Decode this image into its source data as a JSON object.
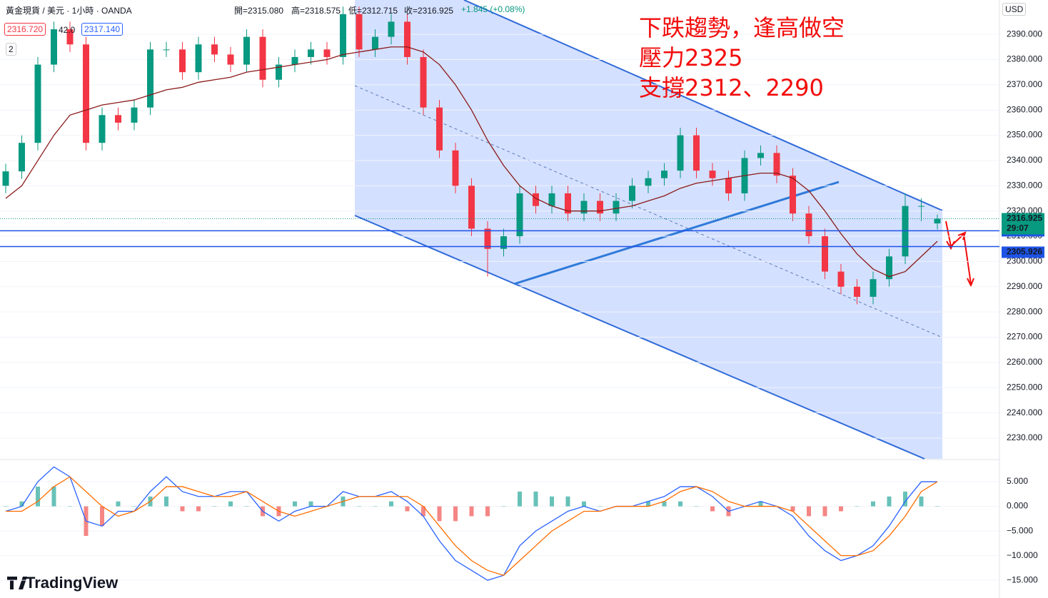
{
  "header": {
    "symbol": "黃金現貨 / 美元 · 1小時 · OANDA",
    "open": "開=2315.080",
    "high": "高=2318.575",
    "low": "低=2312.715",
    "close": "收=2316.925",
    "change": "+1.845 (+0.08%)",
    "sell": "2316.720",
    "spread": "42.0",
    "buy": "2317.140",
    "indicators": "2",
    "currency": "USD",
    "logo": "TradingView"
  },
  "annotations": [
    "下跌趨勢，逢高做空",
    "壓力2325",
    "支撐2312、2290"
  ],
  "chart_data": [
    {
      "type": "candlestick",
      "up_color": "#089981",
      "down_color": "#f23645",
      "open": [
        2330,
        2335.7,
        2347,
        2378,
        2392,
        2386,
        2347,
        2358,
        2355,
        2361,
        2384,
        2384,
        2375,
        2386,
        2382,
        2378,
        2389,
        2372,
        2378,
        2381,
        2384,
        2381,
        2398,
        2384,
        2389,
        2395,
        2381,
        2361,
        2344,
        2330,
        2313,
        2305,
        2310,
        2327,
        2322,
        2327,
        2319,
        2324,
        2319,
        2324,
        2330,
        2333,
        2336,
        2350,
        2336,
        2333,
        2327,
        2341,
        2343,
        2334,
        2319,
        2310,
        2296,
        2290,
        2286,
        2293,
        2302,
        2322,
        2315.08
      ],
      "high": [
        2338.7,
        2350,
        2381,
        2395,
        2395,
        2389,
        2361,
        2361,
        2364,
        2387,
        2387,
        2387,
        2389,
        2389,
        2385,
        2392,
        2392,
        2381,
        2384,
        2387,
        2387,
        2401,
        2401,
        2392,
        2398,
        2398,
        2384,
        2364,
        2347,
        2333,
        2316,
        2313,
        2330,
        2330,
        2330,
        2330,
        2327,
        2327,
        2327,
        2333,
        2336,
        2339,
        2353,
        2353,
        2339,
        2336,
        2344,
        2346,
        2346,
        2337,
        2322,
        2313,
        2299,
        2293,
        2296,
        2305,
        2327,
        2325,
        2318.575
      ],
      "low": [
        2327,
        2332.7,
        2344,
        2375,
        2383,
        2344,
        2344,
        2352,
        2352,
        2358,
        2381,
        2372,
        2372,
        2379,
        2375,
        2375,
        2369,
        2369,
        2375,
        2378,
        2378,
        2378,
        2381,
        2381,
        2386,
        2378,
        2358,
        2341,
        2327,
        2310,
        2294,
        2302,
        2307,
        2319,
        2319,
        2316,
        2316,
        2316,
        2316,
        2321,
        2327,
        2330,
        2333,
        2333,
        2330,
        2324,
        2324,
        2338,
        2331,
        2316,
        2307,
        2293,
        2287,
        2283,
        2283,
        2290,
        2299,
        2316,
        2312.715
      ],
      "close": [
        2335.7,
        2347,
        2378,
        2392,
        2386,
        2347,
        2358,
        2355,
        2361,
        2384,
        2384,
        2375,
        2386,
        2382,
        2378,
        2389,
        2372,
        2378,
        2381,
        2384,
        2381,
        2398,
        2384,
        2389,
        2395,
        2381,
        2361,
        2344,
        2330,
        2313,
        2305,
        2310,
        2327,
        2322,
        2327,
        2319,
        2324,
        2319,
        2324,
        2330,
        2333,
        2336,
        2350,
        2336,
        2333,
        2327,
        2341,
        2343,
        2334,
        2319,
        2310,
        2296,
        2290,
        2286,
        2293,
        2302,
        2322,
        2322,
        2316.925
      ],
      "ma": {
        "color": "#8b1a1a",
        "values": [
          2325,
          2330,
          2340,
          2350,
          2358,
          2360,
          2362,
          2363,
          2364,
          2366,
          2368,
          2369,
          2371,
          2372,
          2373,
          2375,
          2376,
          2377,
          2378,
          2379,
          2380,
          2382,
          2383,
          2384,
          2385,
          2385,
          2383,
          2378,
          2370,
          2360,
          2348,
          2338,
          2330,
          2325,
          2322,
          2320,
          2320,
          2320,
          2321,
          2322,
          2324,
          2326,
          2329,
          2331,
          2332,
          2333,
          2334,
          2335,
          2335,
          2333,
          2328,
          2320,
          2311,
          2303,
          2297,
          2294,
          2296,
          2302,
          2308
        ]
      },
      "ylim": [
        2221.8,
        2403.6
      ],
      "yticks": [
        {
          "value": 2390,
          "label": "2390.000"
        },
        {
          "value": 2380,
          "label": "2380.000"
        },
        {
          "value": 2370,
          "label": "2370.000"
        },
        {
          "value": 2360,
          "label": "2360.000"
        },
        {
          "value": 2350,
          "label": "2350.000"
        },
        {
          "value": 2340,
          "label": "2340.000"
        },
        {
          "value": 2330,
          "label": "2330.000"
        },
        {
          "value": 2320,
          "label": "2320.000"
        },
        {
          "value": 2310,
          "label": "2310.000"
        },
        {
          "value": 2300,
          "label": "2300.000"
        },
        {
          "value": 2290,
          "label": "2290.000"
        },
        {
          "value": 2280,
          "label": "2280.000"
        },
        {
          "value": 2270,
          "label": "2270.000"
        },
        {
          "value": 2260,
          "label": "2260.000"
        },
        {
          "value": 2250,
          "label": "2250.000"
        },
        {
          "value": 2240,
          "label": "2240.000"
        },
        {
          "value": 2230,
          "label": "2230.000"
        }
      ],
      "grid": true,
      "last_price": 2316.925,
      "countdown": "29:07",
      "levels": [
        2312.156,
        2305.926
      ],
      "level_color": "#1e53e5"
    },
    {
      "type": "macd",
      "macd": {
        "color": "#2962ff",
        "values": [
          -1,
          0,
          5,
          8,
          6,
          -3,
          -4,
          -1,
          -1,
          3,
          6,
          3,
          2,
          2,
          3,
          3,
          -1,
          -3,
          -1,
          0,
          0,
          3,
          2,
          2,
          3,
          1,
          -2,
          -7,
          -11,
          -13,
          -15,
          -14,
          -8,
          -5,
          -3,
          -1,
          0,
          -1,
          0,
          0,
          1,
          2,
          4,
          4,
          2,
          -1,
          0,
          1,
          0,
          -2,
          -6,
          -9,
          -11,
          -10,
          -8,
          -4,
          1,
          5,
          5
        ]
      },
      "signal": {
        "color": "#ff6d00",
        "values": [
          -1,
          -1,
          1,
          4,
          6,
          3,
          0,
          -2,
          -1,
          1,
          4,
          4,
          3,
          2,
          2,
          3,
          1,
          -1,
          -2,
          -1,
          0,
          1,
          2,
          2,
          2,
          2,
          0,
          -4,
          -8,
          -11,
          -13,
          -14,
          -11,
          -8,
          -5,
          -3,
          -1,
          -1,
          0,
          0,
          0,
          1,
          3,
          4,
          3,
          1,
          0,
          0,
          0,
          -1,
          -4,
          -7,
          -10,
          -10,
          -9,
          -6,
          -2,
          3,
          5
        ]
      },
      "histogram": {
        "up_color": "#26a69a",
        "down_color": "#ef5350",
        "values": [
          0,
          1,
          4,
          4,
          0,
          -6,
          -4,
          1,
          0,
          2,
          2,
          -1,
          -1,
          0,
          1,
          0,
          -2,
          -2,
          1,
          1,
          0,
          2,
          0,
          0,
          1,
          -1,
          -2,
          -3,
          -3,
          -2,
          -2,
          0,
          3,
          3,
          2,
          2,
          1,
          0,
          0,
          0,
          1,
          1,
          1,
          0,
          -1,
          -2,
          0,
          1,
          0,
          -1,
          -2,
          -2,
          -1,
          0,
          1,
          2,
          3,
          2,
          0
        ]
      },
      "ylim": [
        -18.6,
        9.35
      ],
      "yticks": [
        {
          "value": 5,
          "label": "5.000"
        },
        {
          "value": 0,
          "label": "0.000"
        },
        {
          "value": -5,
          "label": "−5.000"
        },
        {
          "value": -10,
          "label": "−10.000"
        },
        {
          "value": -15,
          "label": "−15.000"
        }
      ]
    }
  ]
}
